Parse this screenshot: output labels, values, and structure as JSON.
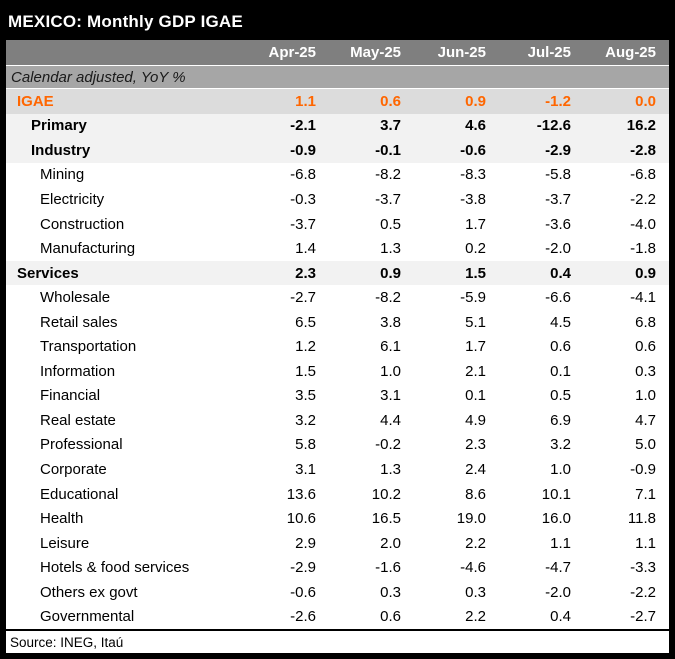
{
  "colors": {
    "accent": "#ff6600",
    "title_bg": "#000000",
    "header_bg": "#7f7f7f",
    "subheader_bg": "#a6a6a6",
    "igae_bg": "#dcdcdc",
    "section_bg": "#f2f2f2"
  },
  "chart_data": {
    "type": "table",
    "title": "MEXICO: Monthly GDP IGAE",
    "subtitle": "Calendar adjusted, YoY %",
    "source": "Source: INEG, Itaú",
    "columns": [
      "Apr-25",
      "May-25",
      "Jun-25",
      "Jul-25",
      "Aug-25"
    ],
    "rows": [
      {
        "label": "IGAE",
        "emphasis": "igae",
        "indent": 0,
        "values": [
          "1.1",
          "0.6",
          "0.9",
          "-1.2",
          "0.0"
        ]
      },
      {
        "label": "Primary",
        "emphasis": "section",
        "indent": 1,
        "values": [
          "-2.1",
          "3.7",
          "4.6",
          "-12.6",
          "16.2"
        ]
      },
      {
        "label": "Industry",
        "emphasis": "section",
        "indent": 1,
        "values": [
          "-0.9",
          "-0.1",
          "-0.6",
          "-2.9",
          "-2.8"
        ]
      },
      {
        "label": "Mining",
        "emphasis": "none",
        "indent": 2,
        "values": [
          "-6.8",
          "-8.2",
          "-8.3",
          "-5.8",
          "-6.8"
        ]
      },
      {
        "label": "Electricity",
        "emphasis": "none",
        "indent": 2,
        "values": [
          "-0.3",
          "-3.7",
          "-3.8",
          "-3.7",
          "-2.2"
        ]
      },
      {
        "label": "Construction",
        "emphasis": "none",
        "indent": 2,
        "values": [
          "-3.7",
          "0.5",
          "1.7",
          "-3.6",
          "-4.0"
        ]
      },
      {
        "label": "Manufacturing",
        "emphasis": "none",
        "indent": 2,
        "values": [
          "1.4",
          "1.3",
          "0.2",
          "-2.0",
          "-1.8"
        ]
      },
      {
        "label": "Services",
        "emphasis": "section",
        "indent": 0,
        "values": [
          "2.3",
          "0.9",
          "1.5",
          "0.4",
          "0.9"
        ]
      },
      {
        "label": "Wholesale",
        "emphasis": "none",
        "indent": 2,
        "values": [
          "-2.7",
          "-8.2",
          "-5.9",
          "-6.6",
          "-4.1"
        ]
      },
      {
        "label": "Retail sales",
        "emphasis": "none",
        "indent": 2,
        "values": [
          "6.5",
          "3.8",
          "5.1",
          "4.5",
          "6.8"
        ]
      },
      {
        "label": "Transportation",
        "emphasis": "none",
        "indent": 2,
        "values": [
          "1.2",
          "6.1",
          "1.7",
          "0.6",
          "0.6"
        ]
      },
      {
        "label": "Information",
        "emphasis": "none",
        "indent": 2,
        "values": [
          "1.5",
          "1.0",
          "2.1",
          "0.1",
          "0.3"
        ]
      },
      {
        "label": "Financial",
        "emphasis": "none",
        "indent": 2,
        "values": [
          "3.5",
          "3.1",
          "0.1",
          "0.5",
          "1.0"
        ]
      },
      {
        "label": "Real estate",
        "emphasis": "none",
        "indent": 2,
        "values": [
          "3.2",
          "4.4",
          "4.9",
          "6.9",
          "4.7"
        ]
      },
      {
        "label": "Professional",
        "emphasis": "none",
        "indent": 2,
        "values": [
          "5.8",
          "-0.2",
          "2.3",
          "3.2",
          "5.0"
        ]
      },
      {
        "label": "Corporate",
        "emphasis": "none",
        "indent": 2,
        "values": [
          "3.1",
          "1.3",
          "2.4",
          "1.0",
          "-0.9"
        ]
      },
      {
        "label": "Educational",
        "emphasis": "none",
        "indent": 2,
        "values": [
          "13.6",
          "10.2",
          "8.6",
          "10.1",
          "7.1"
        ]
      },
      {
        "label": "Health",
        "emphasis": "none",
        "indent": 2,
        "values": [
          "10.6",
          "16.5",
          "19.0",
          "16.0",
          "11.8"
        ]
      },
      {
        "label": "Leisure",
        "emphasis": "none",
        "indent": 2,
        "values": [
          "2.9",
          "2.0",
          "2.2",
          "1.1",
          "1.1"
        ]
      },
      {
        "label": "Hotels & food services",
        "emphasis": "none",
        "indent": 2,
        "values": [
          "-2.9",
          "-1.6",
          "-4.6",
          "-4.7",
          "-3.3"
        ]
      },
      {
        "label": "Others ex govt",
        "emphasis": "none",
        "indent": 2,
        "values": [
          "-0.6",
          "0.3",
          "0.3",
          "-2.0",
          "-2.2"
        ]
      },
      {
        "label": "Governmental",
        "emphasis": "none",
        "indent": 2,
        "values": [
          "-2.6",
          "0.6",
          "2.2",
          "0.4",
          "-2.7"
        ]
      }
    ]
  }
}
